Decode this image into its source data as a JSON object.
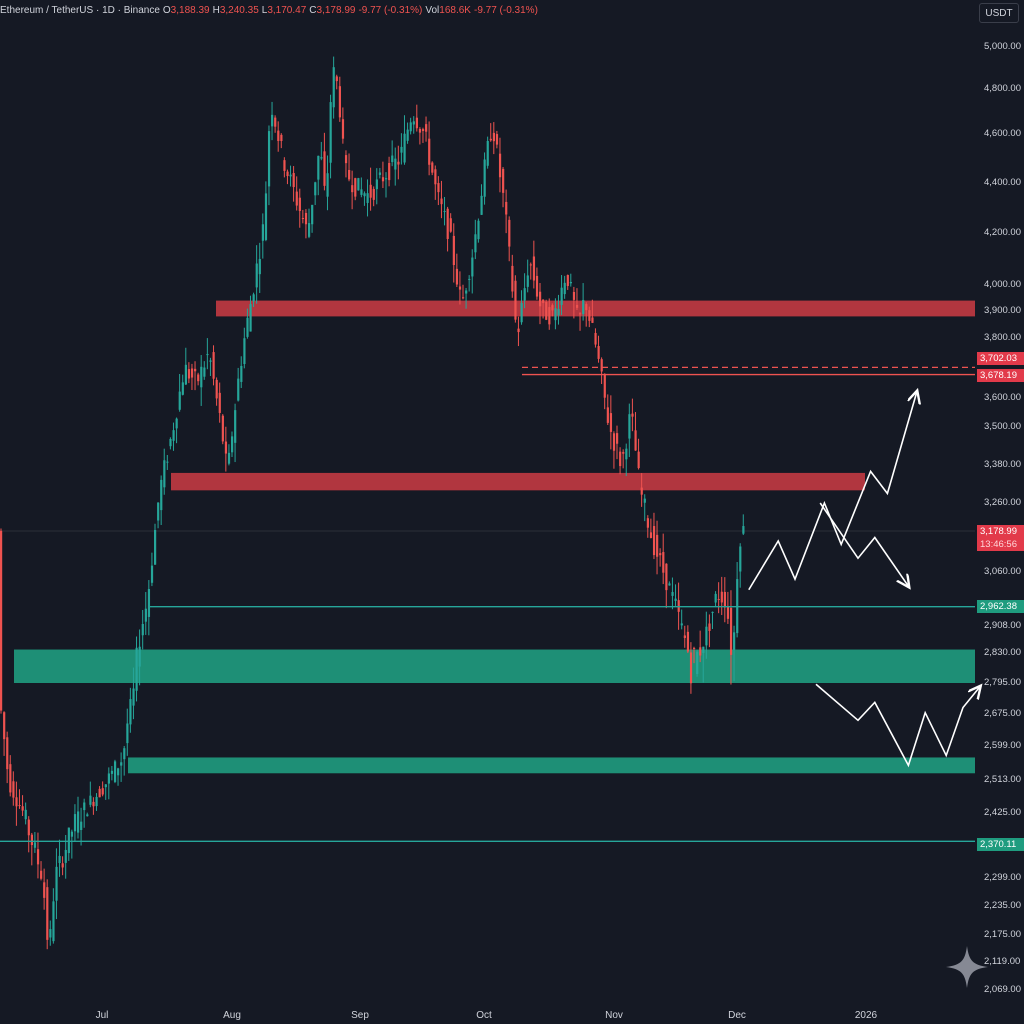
{
  "header": {
    "symbol": "Ethereum / TetherUS · 1D · Binance",
    "open_label": "O",
    "open": "3,188.39",
    "high_label": "H",
    "high": "3,240.35",
    "low_label": "L",
    "low": "3,170.47",
    "close_label": "C",
    "close": "3,178.99",
    "change": "-9.77 (-0.31%)",
    "vol_label": "Vol",
    "vol": "168.6K",
    "change2": "-9.77 (-0.31%)"
  },
  "currency_button": "USDT",
  "colors": {
    "background": "#151924",
    "bull": "#26a69a",
    "bear": "#ef5350",
    "resistance_zone": "#c73a43",
    "support_zone": "#1f9c7f",
    "axis_text": "#d1d4dc"
  },
  "chart_data": {
    "type": "candlestick",
    "symbol": "ETH/USDT",
    "interval": "1D",
    "exchange": "Binance",
    "x_ticks": [
      "Jul",
      "Aug",
      "Sep",
      "Oct",
      "Nov",
      "Dec",
      "2026"
    ],
    "y_ticks": [
      "5,000.00",
      "4,800.00",
      "4,600.00",
      "4,400.00",
      "4,200.00",
      "4,000.00",
      "3,900.00",
      "3,800.00",
      "3,600.00",
      "3,500.00",
      "3,380.00",
      "3,260.00",
      "3,060.00",
      "2,908.00",
      "2,830.00",
      "2,795.00",
      "2,675.00",
      "2,599.00",
      "2,513.00",
      "2,425.00",
      "2,299.00",
      "2,235.00",
      "2,175.00",
      "2,119.00",
      "2,069.00"
    ],
    "resistance_zones": [
      {
        "from": 3880,
        "to": 3940
      },
      {
        "from": 3300,
        "to": 3355
      }
    ],
    "support_zones": [
      {
        "from": 2795,
        "to": 2840
      },
      {
        "from": 2530,
        "to": 2570
      }
    ],
    "lines": [
      {
        "price": 2962.38,
        "style": "solid",
        "color": "bull"
      },
      {
        "price": 2370.11,
        "style": "solid",
        "color": "bull"
      },
      {
        "price": 3702.03,
        "style": "dashed",
        "color": "bear"
      },
      {
        "price": 3678.19,
        "style": "solid",
        "color": "bear"
      }
    ],
    "price_labels": [
      {
        "text": "3,702.03",
        "color": "bear"
      },
      {
        "text": "3,678.19",
        "color": "bear"
      },
      {
        "text": "3,178.99",
        "color": "bear"
      },
      {
        "text": "13:46:56",
        "color": "bear"
      },
      {
        "text": "2,962.38",
        "color": "bull"
      },
      {
        "text": "2,370.11",
        "color": "bull"
      }
    ],
    "last_price": 3178.99,
    "projection_paths": [
      {
        "name": "bullish",
        "points": [
          [
            "2025-12-02",
            3010
          ],
          [
            "2025-12-09",
            3150
          ],
          [
            "2025-12-13",
            3040
          ],
          [
            "2025-12-20",
            3260
          ],
          [
            "2025-12-24",
            3140
          ],
          [
            "2025-12-31",
            3360
          ],
          [
            "2026-01-04",
            3290
          ],
          [
            "2026-01-11",
            3620
          ]
        ]
      },
      {
        "name": "bearish",
        "points": [
          [
            "2025-12-19",
            3260
          ],
          [
            "2025-12-28",
            3100
          ],
          [
            "2026-01-01",
            3160
          ],
          [
            "2026-01-09",
            3020
          ]
        ]
      },
      {
        "name": "dip-and-recover",
        "points": [
          [
            "2025-12-18",
            2790
          ],
          [
            "2025-12-28",
            2660
          ],
          [
            "2026-01-01",
            2720
          ],
          [
            "2026-01-09",
            2550
          ],
          [
            "2026-01-13",
            2680
          ],
          [
            "2026-01-18",
            2575
          ],
          [
            "2026-01-22",
            2700
          ],
          [
            "2026-01-26",
            2780
          ]
        ]
      }
    ]
  },
  "watermark_icon": "sparkle-icon"
}
